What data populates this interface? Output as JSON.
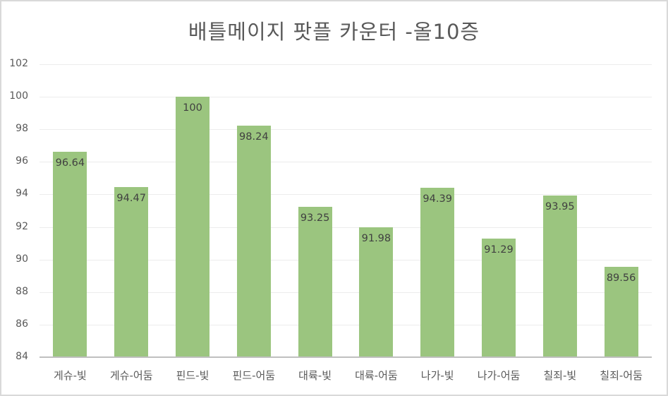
{
  "chart_data": {
    "type": "bar",
    "title": "배틀메이지 팟플 카운터 -올10증",
    "categories": [
      "게슈-빛",
      "게슈-어둠",
      "핀드-빛",
      "핀드-어둠",
      "대륙-빛",
      "대륙-어둠",
      "나가-빛",
      "나가-어둠",
      "칠죄-빛",
      "칠죄-어둠"
    ],
    "values": [
      96.64,
      94.47,
      100,
      98.24,
      93.25,
      91.98,
      94.39,
      91.29,
      93.95,
      89.56
    ],
    "value_labels": [
      "96.64",
      "94.47",
      "100",
      "98.24",
      "93.25",
      "91.98",
      "94.39",
      "91.29",
      "93.95",
      "89.56"
    ],
    "xlabel": "",
    "ylabel": "",
    "ylim": [
      84,
      102
    ],
    "yticks": [
      "102",
      "100",
      "98",
      "96",
      "94",
      "92",
      "90",
      "88",
      "86",
      "84"
    ],
    "grid": true,
    "legend": "none",
    "bar_color": "#9bc57f"
  }
}
